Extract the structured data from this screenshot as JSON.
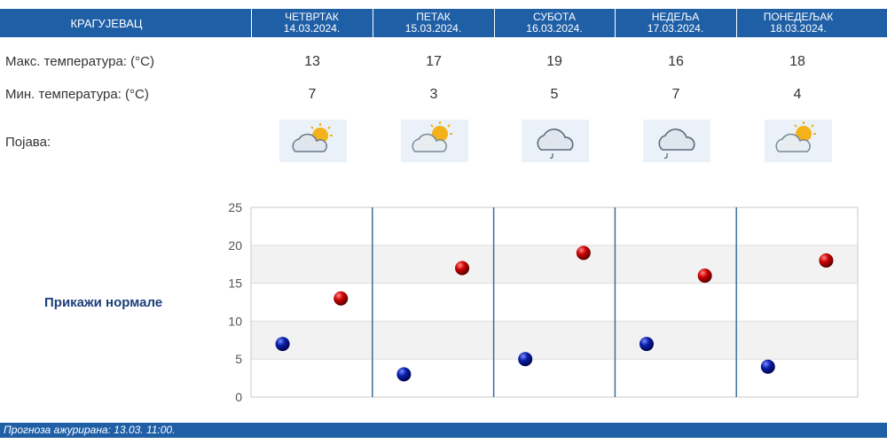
{
  "header": {
    "city": "КРАГУЈЕВАЦ",
    "days": [
      {
        "name": "ЧЕТВРТАК",
        "date": "14.03.2024."
      },
      {
        "name": "ПЕТАК",
        "date": "15.03.2024."
      },
      {
        "name": "СУБОТА",
        "date": "16.03.2024."
      },
      {
        "name": "НЕДЕЉА",
        "date": "17.03.2024."
      },
      {
        "name": "ПОНЕДЕЉАК",
        "date": "18.03.2024."
      }
    ]
  },
  "rows": {
    "max_label": "Макс. температура: (°C)",
    "min_label": "Мин. температура: (°C)",
    "phenomenon_label": "Појава:",
    "max": [
      "13",
      "17",
      "19",
      "16",
      "18"
    ],
    "min": [
      "7",
      "3",
      "5",
      "7",
      "4"
    ],
    "icons": [
      "partly-cloudy-icon",
      "partly-cloudy-icon",
      "cloud-drizzle-icon",
      "cloud-drizzle-icon",
      "partly-cloudy-icon"
    ]
  },
  "show_normals": "Прикажи нормале",
  "footer": {
    "text": "Прогноза ажурирана:  13.03. 11:00."
  },
  "colors": {
    "header_bg": "#1f5fa6",
    "max_marker": "#cc0000",
    "min_marker": "#0a1fa8"
  },
  "chart_data": {
    "type": "scatter",
    "categories": [
      "14.03.2024.",
      "15.03.2024.",
      "16.03.2024.",
      "17.03.2024.",
      "18.03.2024."
    ],
    "series": [
      {
        "values": [
          7,
          3,
          5,
          7,
          4
        ]
      },
      {
        "values": [
          13,
          17,
          19,
          16,
          18
        ]
      }
    ],
    "ylim": [
      0,
      25
    ],
    "yticks": [
      "0",
      "5",
      "10",
      "15",
      "20",
      "25"
    ],
    "grid": true
  }
}
